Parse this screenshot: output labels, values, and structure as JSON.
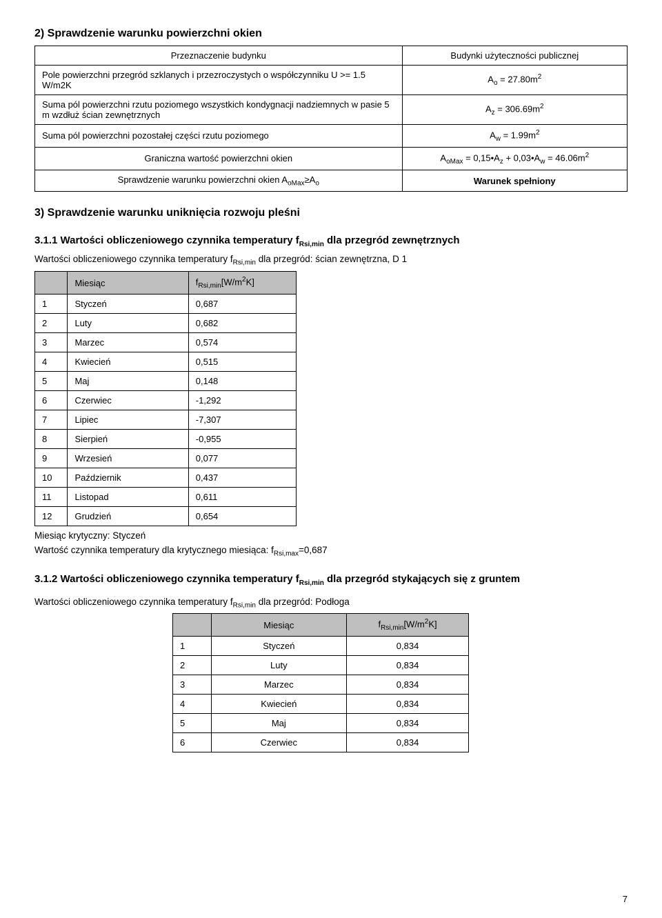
{
  "section2_title": "2) Sprawdzenie warunku powierzchni okien",
  "table1": {
    "rows": [
      {
        "left": "Przeznaczenie budynku",
        "right": "Budynki użyteczności publicznej"
      },
      {
        "left": "Pole powierzchni przegród szklanych i przezroczystych o współczynniku U >= 1.5 W/m2K",
        "right_html": "A<sub>o</sub> = 27.80m<sup>2</sup>"
      },
      {
        "left": "Suma pól powierzchni rzutu poziomego wszystkich kondygnacji nadziemnych w pasie 5 m wzdłuż ścian zewnętrznych",
        "right_html": "A<sub>z</sub> = 306.69m<sup>2</sup>"
      },
      {
        "left": "Suma pól powierzchni pozostałej części rzutu poziomego",
        "right_html": "A<sub>w</sub> = 1.99m<sup>2</sup>"
      },
      {
        "left": "Graniczna wartość powierzchni okien",
        "right_html": "A<sub>oMax</sub> = 0,15•A<sub>z</sub> + 0,03•A<sub>w</sub> = 46.06m<sup>2</sup>"
      },
      {
        "left_html": "Sprawdzenie warunku powierzchni okien A<sub>oMax</sub>≥A<sub>o</sub>",
        "right_bold": "Warunek spełniony"
      }
    ]
  },
  "section3_title": "3) Sprawdzenie warunku uniknięcia rozwoju pleśni",
  "section311_title_html": "3.1.1 Wartości obliczeniowego czynnika temperatury f<sub>Rsi,min</sub> dla przegród zewnętrznych",
  "section311_caption_html": "Wartości obliczeniowego czynnika temperatury f<sub>Rsi,min</sub> dla przegród: ścian zewnętrzna, D 1",
  "table2": {
    "header_col1": "Miesiąc",
    "header_col2_html": "f<sub>Rsi,min</sub>[W/m<sup>2</sup>K]",
    "rows": [
      {
        "n": "1",
        "m": "Styczeń",
        "v": "0,687"
      },
      {
        "n": "2",
        "m": "Luty",
        "v": "0,682"
      },
      {
        "n": "3",
        "m": "Marzec",
        "v": "0,574"
      },
      {
        "n": "4",
        "m": "Kwiecień",
        "v": "0,515"
      },
      {
        "n": "5",
        "m": "Maj",
        "v": "0,148"
      },
      {
        "n": "6",
        "m": "Czerwiec",
        "v": "-1,292"
      },
      {
        "n": "7",
        "m": "Lipiec",
        "v": "-7,307"
      },
      {
        "n": "8",
        "m": "Sierpień",
        "v": "-0,955"
      },
      {
        "n": "9",
        "m": "Wrzesień",
        "v": "0,077"
      },
      {
        "n": "10",
        "m": "Październik",
        "v": "0,437"
      },
      {
        "n": "11",
        "m": "Listopad",
        "v": "0,611"
      },
      {
        "n": "12",
        "m": "Grudzień",
        "v": "0,654"
      }
    ]
  },
  "critical_month": "Miesiąc krytyczny: Styczeń",
  "critical_value_html": "Wartość czynnika temperatury dla krytycznego miesiąca: f<sub>Rsi,max</sub>=0,687",
  "section312_title_html": "3.1.2 Wartości obliczeniowego czynnika temperatury f<sub>Rsi,min</sub> dla przegród stykających się z gruntem",
  "section312_caption_html": "Wartości obliczeniowego czynnika temperatury f<sub>Rsi,min</sub> dla przegród: Podłoga",
  "table3": {
    "header_col1": "Miesiąc",
    "header_col2_html": "f<sub>Rsi,min</sub>[W/m<sup>2</sup>K]",
    "rows": [
      {
        "n": "1",
        "m": "Styczeń",
        "v": "0,834"
      },
      {
        "n": "2",
        "m": "Luty",
        "v": "0,834"
      },
      {
        "n": "3",
        "m": "Marzec",
        "v": "0,834"
      },
      {
        "n": "4",
        "m": "Kwiecień",
        "v": "0,834"
      },
      {
        "n": "5",
        "m": "Maj",
        "v": "0,834"
      },
      {
        "n": "6",
        "m": "Czerwiec",
        "v": "0,834"
      }
    ]
  },
  "page_number": "7"
}
